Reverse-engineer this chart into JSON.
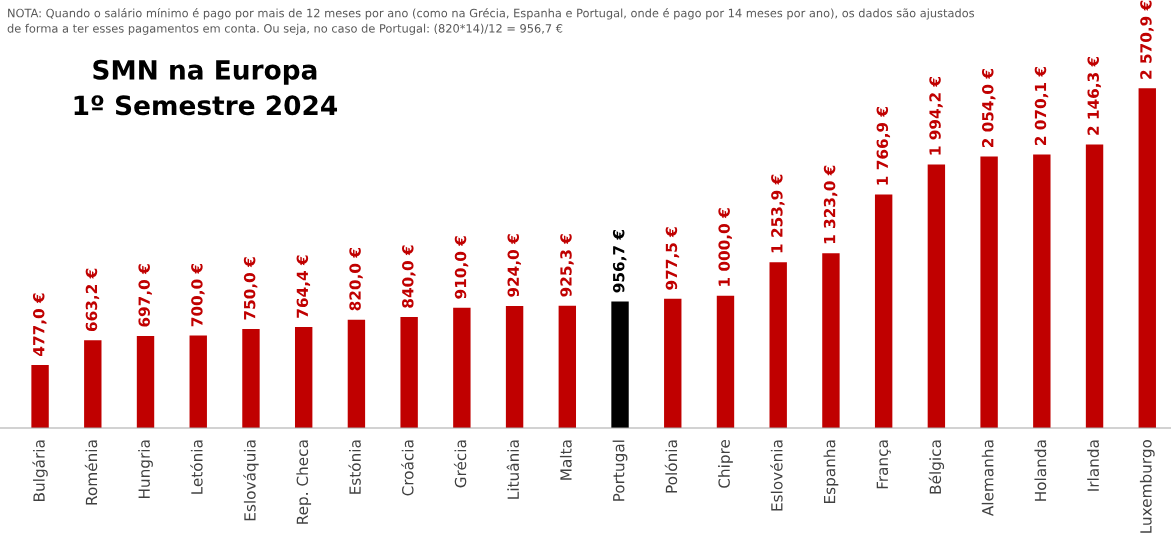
{
  "chart_data": {
    "type": "bar",
    "title": "SMN na Europa\n1º Semestre 2024",
    "categories": [
      "Bulgária",
      "Roménia",
      "Hungria",
      "Letónia",
      "Eslováquia",
      "Rep. Checa",
      "Estónia",
      "Croácia",
      "Grécia",
      "Lituânia",
      "Malta",
      "Portugal",
      "Polónia",
      "Chipre",
      "Eslovénia",
      "Espanha",
      "França",
      "Bélgica",
      "Alemanha",
      "Holanda",
      "Irlanda",
      "Luxemburgo"
    ],
    "values": [
      477.0,
      663.2,
      697.0,
      700.0,
      750.0,
      764.4,
      820.0,
      840.0,
      910.0,
      924.0,
      925.3,
      956.7,
      977.5,
      1000.0,
      1253.9,
      1323.0,
      1766.9,
      1994.2,
      2054.0,
      2070.1,
      2146.3,
      2570.9
    ],
    "colors": [
      "#c00000",
      "#c00000",
      "#c00000",
      "#c00000",
      "#c00000",
      "#c00000",
      "#c00000",
      "#c00000",
      "#c00000",
      "#c00000",
      "#c00000",
      "#000000",
      "#c00000",
      "#c00000",
      "#c00000",
      "#c00000",
      "#c00000",
      "#c00000",
      "#c00000",
      "#c00000",
      "#c00000",
      "#c00000"
    ],
    "value_labels": [
      "477,0 €",
      "663,2 €",
      "697,0 €",
      "700,0 €",
      "750,0 €",
      "764,4 €",
      "820,0 €",
      "840,0 €",
      "910,0 €",
      "924,0 €",
      "925,3 €",
      "956,7 €",
      "977,5 €",
      "1 000,0 €",
      "1 253,9 €",
      "1 323,0 €",
      "1 766,9 €",
      "1 994,2 €",
      "2 054,0 €",
      "2 070,1 €",
      "2 146,3 €",
      "2 570,9 €"
    ],
    "annotations": [
      "NOTA: Quando o salário mínimo é pago por mais de 12 meses por ano (como na Grécia, Espanha e Portugal, onde é pago por 14 meses por ano), os dados são ajustados\nde forma a ter esses pagamentos em conta. Ou seja, no caso de Portugal: (820*14)/12 = 956,7 €"
    ],
    "grid": false,
    "legend": false
  }
}
